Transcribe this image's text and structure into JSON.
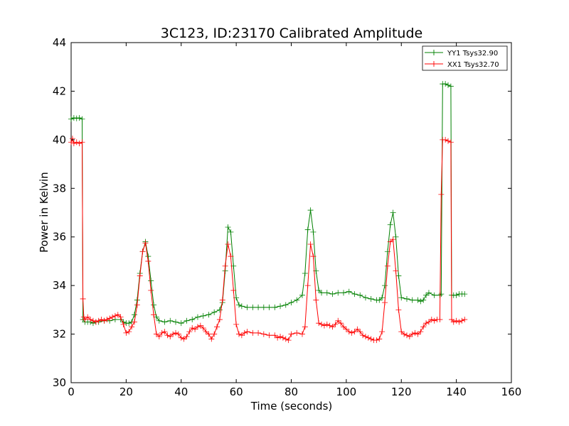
{
  "chart_data": {
    "type": "line",
    "title": "3C123, ID:23170 Calibrated Amplitude",
    "xlabel": "Time (seconds)",
    "ylabel": "Power in Kelvin",
    "xlim": [
      0,
      160
    ],
    "ylim": [
      30,
      44
    ],
    "xticks": [
      0,
      20,
      40,
      60,
      80,
      100,
      120,
      140,
      160
    ],
    "yticks": [
      30,
      32,
      34,
      36,
      38,
      40,
      42,
      44
    ],
    "xtick_labels": [
      "0",
      "20",
      "40",
      "60",
      "80",
      "100",
      "120",
      "140",
      "160"
    ],
    "ytick_labels": [
      "30",
      "32",
      "34",
      "36",
      "38",
      "40",
      "42",
      "44"
    ],
    "grid": false,
    "legend_position": "top-right",
    "marker": "plus",
    "series": [
      {
        "name": "YY1 Tsys32.90",
        "color": "#008000",
        "points": [
          [
            0,
            40.85
          ],
          [
            1,
            40.9
          ],
          [
            2,
            40.88
          ],
          [
            3,
            40.9
          ],
          [
            4,
            40.85
          ],
          [
            4.3,
            32.6
          ],
          [
            5,
            32.5
          ],
          [
            6,
            32.5
          ],
          [
            7,
            32.5
          ],
          [
            8,
            32.45
          ],
          [
            9,
            32.5
          ],
          [
            10,
            32.5
          ],
          [
            12,
            32.55
          ],
          [
            14,
            32.55
          ],
          [
            16,
            32.6
          ],
          [
            18,
            32.6
          ],
          [
            19,
            32.5
          ],
          [
            20,
            32.45
          ],
          [
            21,
            32.45
          ],
          [
            22,
            32.5
          ],
          [
            23,
            32.8
          ],
          [
            24,
            33.4
          ],
          [
            25,
            34.5
          ],
          [
            26,
            35.4
          ],
          [
            27,
            35.8
          ],
          [
            28,
            35.2
          ],
          [
            29,
            34.2
          ],
          [
            30,
            33.2
          ],
          [
            31,
            32.7
          ],
          [
            32,
            32.55
          ],
          [
            34,
            32.5
          ],
          [
            36,
            32.55
          ],
          [
            38,
            32.5
          ],
          [
            40,
            32.45
          ],
          [
            42,
            32.55
          ],
          [
            44,
            32.6
          ],
          [
            46,
            32.7
          ],
          [
            48,
            32.75
          ],
          [
            50,
            32.8
          ],
          [
            52,
            32.9
          ],
          [
            54,
            33.0
          ],
          [
            55,
            33.3
          ],
          [
            56,
            34.6
          ],
          [
            57,
            36.4
          ],
          [
            58,
            36.2
          ],
          [
            59,
            34.8
          ],
          [
            60,
            33.5
          ],
          [
            61,
            33.2
          ],
          [
            62,
            33.15
          ],
          [
            64,
            33.1
          ],
          [
            66,
            33.1
          ],
          [
            68,
            33.1
          ],
          [
            70,
            33.1
          ],
          [
            72,
            33.1
          ],
          [
            74,
            33.1
          ],
          [
            76,
            33.15
          ],
          [
            78,
            33.2
          ],
          [
            80,
            33.3
          ],
          [
            82,
            33.4
          ],
          [
            84,
            33.6
          ],
          [
            85,
            34.5
          ],
          [
            86,
            36.3
          ],
          [
            87,
            37.1
          ],
          [
            88,
            36.2
          ],
          [
            89,
            34.6
          ],
          [
            90,
            33.8
          ],
          [
            91,
            33.7
          ],
          [
            93,
            33.7
          ],
          [
            95,
            33.65
          ],
          [
            97,
            33.7
          ],
          [
            99,
            33.7
          ],
          [
            101,
            33.75
          ],
          [
            103,
            33.65
          ],
          [
            105,
            33.6
          ],
          [
            107,
            33.5
          ],
          [
            109,
            33.45
          ],
          [
            111,
            33.4
          ],
          [
            112,
            33.4
          ],
          [
            113,
            33.5
          ],
          [
            114,
            34.0
          ],
          [
            115,
            35.4
          ],
          [
            116,
            36.5
          ],
          [
            117,
            37.0
          ],
          [
            118,
            36.0
          ],
          [
            119,
            34.4
          ],
          [
            120,
            33.5
          ],
          [
            122,
            33.45
          ],
          [
            124,
            33.4
          ],
          [
            126,
            33.4
          ],
          [
            127,
            33.35
          ],
          [
            128,
            33.4
          ],
          [
            129,
            33.6
          ],
          [
            130,
            33.7
          ],
          [
            132,
            33.6
          ],
          [
            134,
            33.6
          ],
          [
            134.5,
            33.65
          ],
          [
            135,
            42.3
          ],
          [
            136,
            42.3
          ],
          [
            137,
            42.25
          ],
          [
            138,
            42.2
          ],
          [
            138.3,
            33.6
          ],
          [
            139,
            33.6
          ],
          [
            140,
            33.6
          ],
          [
            141,
            33.65
          ],
          [
            142,
            33.65
          ],
          [
            143,
            33.65
          ]
        ]
      },
      {
        "name": "XX1 Tsys32.70",
        "color": "#ff0000",
        "points": [
          [
            0,
            39.9
          ],
          [
            0.5,
            40.05
          ],
          [
            1,
            39.85
          ],
          [
            2,
            39.9
          ],
          [
            3,
            39.85
          ],
          [
            4,
            39.9
          ],
          [
            4.3,
            33.45
          ],
          [
            4.6,
            32.7
          ],
          [
            5,
            32.6
          ],
          [
            6,
            32.7
          ],
          [
            7,
            32.6
          ],
          [
            8,
            32.55
          ],
          [
            9,
            32.5
          ],
          [
            10,
            32.55
          ],
          [
            11,
            32.6
          ],
          [
            12,
            32.55
          ],
          [
            13,
            32.6
          ],
          [
            14,
            32.65
          ],
          [
            15,
            32.7
          ],
          [
            16,
            32.75
          ],
          [
            17,
            32.8
          ],
          [
            18,
            32.7
          ],
          [
            19,
            32.4
          ],
          [
            20,
            32.05
          ],
          [
            21,
            32.1
          ],
          [
            22,
            32.3
          ],
          [
            23,
            32.5
          ],
          [
            24,
            33.2
          ],
          [
            25,
            34.4
          ],
          [
            26,
            35.4
          ],
          [
            27,
            35.75
          ],
          [
            28,
            35.0
          ],
          [
            29,
            33.8
          ],
          [
            30,
            32.8
          ],
          [
            31,
            32.0
          ],
          [
            32,
            31.9
          ],
          [
            33,
            32.05
          ],
          [
            34,
            32.1
          ],
          [
            35,
            31.95
          ],
          [
            36,
            31.9
          ],
          [
            37,
            32.0
          ],
          [
            38,
            32.05
          ],
          [
            39,
            32.0
          ],
          [
            40,
            31.85
          ],
          [
            41,
            31.8
          ],
          [
            42,
            31.9
          ],
          [
            43,
            32.1
          ],
          [
            44,
            32.25
          ],
          [
            45,
            32.2
          ],
          [
            46,
            32.3
          ],
          [
            47,
            32.35
          ],
          [
            48,
            32.25
          ],
          [
            49,
            32.1
          ],
          [
            50,
            32.0
          ],
          [
            51,
            31.8
          ],
          [
            52,
            32.0
          ],
          [
            53,
            32.3
          ],
          [
            54,
            32.6
          ],
          [
            55,
            33.4
          ],
          [
            56,
            34.8
          ],
          [
            57,
            35.7
          ],
          [
            58,
            35.2
          ],
          [
            59,
            33.8
          ],
          [
            60,
            32.4
          ],
          [
            61,
            32.0
          ],
          [
            62,
            31.95
          ],
          [
            63,
            32.05
          ],
          [
            64,
            32.1
          ],
          [
            66,
            32.05
          ],
          [
            68,
            32.05
          ],
          [
            70,
            32.0
          ],
          [
            72,
            31.95
          ],
          [
            74,
            31.95
          ],
          [
            75,
            31.85
          ],
          [
            76,
            31.9
          ],
          [
            77,
            31.85
          ],
          [
            78,
            31.8
          ],
          [
            79,
            31.75
          ],
          [
            80,
            32.0
          ],
          [
            82,
            32.05
          ],
          [
            84,
            32.0
          ],
          [
            85,
            32.3
          ],
          [
            86,
            34.0
          ],
          [
            87,
            35.7
          ],
          [
            88,
            35.2
          ],
          [
            89,
            33.4
          ],
          [
            90,
            32.45
          ],
          [
            91,
            32.4
          ],
          [
            92,
            32.35
          ],
          [
            93,
            32.4
          ],
          [
            94,
            32.35
          ],
          [
            95,
            32.3
          ],
          [
            96,
            32.4
          ],
          [
            97,
            32.55
          ],
          [
            98,
            32.45
          ],
          [
            99,
            32.3
          ],
          [
            100,
            32.2
          ],
          [
            101,
            32.1
          ],
          [
            102,
            32.05
          ],
          [
            103,
            32.1
          ],
          [
            104,
            32.2
          ],
          [
            105,
            32.1
          ],
          [
            106,
            31.95
          ],
          [
            107,
            31.9
          ],
          [
            108,
            31.85
          ],
          [
            109,
            31.8
          ],
          [
            110,
            31.75
          ],
          [
            111,
            31.75
          ],
          [
            112,
            31.8
          ],
          [
            113,
            32.1
          ],
          [
            114,
            33.3
          ],
          [
            115,
            34.8
          ],
          [
            116,
            35.8
          ],
          [
            117,
            35.9
          ],
          [
            118,
            34.6
          ],
          [
            119,
            33.0
          ],
          [
            120,
            32.1
          ],
          [
            121,
            32.0
          ],
          [
            122,
            31.95
          ],
          [
            123,
            31.9
          ],
          [
            124,
            32.0
          ],
          [
            125,
            32.05
          ],
          [
            126,
            32.0
          ],
          [
            127,
            32.1
          ],
          [
            128,
            32.3
          ],
          [
            129,
            32.45
          ],
          [
            130,
            32.5
          ],
          [
            131,
            32.6
          ],
          [
            132,
            32.55
          ],
          [
            133,
            32.6
          ],
          [
            134,
            32.6
          ],
          [
            134.5,
            37.75
          ],
          [
            135,
            40.0
          ],
          [
            136,
            40.0
          ],
          [
            137,
            39.95
          ],
          [
            138,
            39.9
          ],
          [
            138.3,
            32.6
          ],
          [
            139,
            32.5
          ],
          [
            140,
            32.55
          ],
          [
            141,
            32.5
          ],
          [
            142,
            32.55
          ],
          [
            143,
            32.6
          ]
        ]
      }
    ]
  }
}
